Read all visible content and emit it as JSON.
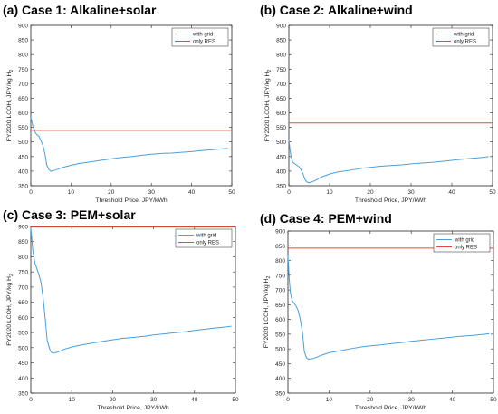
{
  "chart_data": [
    {
      "type": "line",
      "title": "(a) Case 1: Alkaline+solar",
      "xlabel": "Threshold Price, JPY/kWh",
      "ylabel": "FY2020 LCOH, JPY/kg H",
      "ylabel_sub": "2",
      "xlim": [
        0,
        50
      ],
      "ylim": [
        350,
        900
      ],
      "xticks": [
        0,
        10,
        20,
        30,
        40,
        50
      ],
      "yticks": [
        350,
        400,
        450,
        500,
        550,
        600,
        650,
        700,
        750,
        800,
        850,
        900
      ],
      "legend_position": "top-right",
      "series": [
        {
          "name": "with grid",
          "color": "#4a9fdc",
          "x": [
            0,
            0.5,
            1,
            1.5,
            2,
            2.5,
            3,
            3.5,
            4,
            4.5,
            5,
            6,
            7,
            8,
            10,
            12,
            15,
            18,
            20,
            22,
            25,
            28,
            30,
            33,
            35,
            38,
            40,
            42,
            45,
            48,
            49
          ],
          "y": [
            585,
            555,
            535,
            525,
            520,
            505,
            490,
            460,
            420,
            405,
            400,
            403,
            408,
            413,
            420,
            426,
            432,
            438,
            442,
            446,
            450,
            455,
            458,
            461,
            462,
            465,
            467,
            470,
            473,
            477,
            478
          ]
        },
        {
          "name": "only RES",
          "color": "#e8463c",
          "x": [
            0,
            50
          ],
          "y": [
            540,
            540
          ]
        }
      ]
    },
    {
      "type": "line",
      "title": "(b) Case 2: Alkaline+wind",
      "xlabel": "Threshold Price, JPY/kWh",
      "ylabel": "FY2020 LCOH, JPY/kg H",
      "ylabel_sub": "2",
      "xlim": [
        0,
        50
      ],
      "ylim": [
        350,
        900
      ],
      "xticks": [
        0,
        10,
        20,
        30,
        40,
        50
      ],
      "yticks": [
        350,
        400,
        450,
        500,
        550,
        600,
        650,
        700,
        750,
        800,
        850,
        900
      ],
      "legend_position": "top-right",
      "series": [
        {
          "name": "with grid",
          "color": "#4a9fdc",
          "x": [
            0,
            0.3,
            0.6,
            1,
            1.5,
            2,
            2.5,
            3,
            3.5,
            4,
            4.5,
            5,
            6,
            7,
            8,
            10,
            12,
            15,
            18,
            20,
            22,
            25,
            28,
            30,
            33,
            35,
            38,
            40,
            42,
            45,
            48,
            49
          ],
          "y": [
            510,
            470,
            445,
            430,
            425,
            420,
            415,
            405,
            390,
            370,
            362,
            360,
            365,
            372,
            380,
            390,
            397,
            403,
            410,
            413,
            416,
            419,
            422,
            425,
            428,
            430,
            434,
            437,
            440,
            444,
            448,
            450
          ]
        },
        {
          "name": "only RES",
          "color": "#e8463c",
          "x": [
            0,
            50
          ],
          "y": [
            565,
            565
          ]
        }
      ]
    },
    {
      "type": "line",
      "title": "(c) Case 3: PEM+solar",
      "xlabel": "Threshold Price, JPY/kWh",
      "ylabel": "FY2020 LCOH, JPY/kg H",
      "ylabel_sub": "2",
      "xlim": [
        0,
        50
      ],
      "ylim": [
        350,
        900
      ],
      "xticks": [
        0,
        10,
        20,
        30,
        40,
        50
      ],
      "yticks": [
        350,
        400,
        450,
        500,
        550,
        600,
        650,
        700,
        750,
        800,
        850,
        900
      ],
      "legend_position": "top-right",
      "series": [
        {
          "name": "with grid",
          "color": "#4a9fdc",
          "x": [
            0,
            0.5,
            1,
            1.5,
            2,
            2.5,
            3,
            3.5,
            4,
            4.5,
            5,
            5.5,
            6,
            7,
            8,
            10,
            12,
            15,
            18,
            20,
            22,
            25,
            28,
            30,
            33,
            35,
            38,
            40,
            42,
            45,
            48,
            49
          ],
          "y": [
            895,
            820,
            780,
            760,
            740,
            715,
            665,
            600,
            525,
            500,
            485,
            482,
            483,
            488,
            494,
            502,
            508,
            515,
            522,
            526,
            530,
            534,
            538,
            542,
            546,
            549,
            553,
            557,
            560,
            565,
            569,
            571
          ]
        },
        {
          "name": "only RES",
          "color": "#e8463c",
          "x": [
            0,
            50
          ],
          "y": [
            898,
            898
          ]
        }
      ]
    },
    {
      "type": "line",
      "title": "(d) Case 4: PEM+wind",
      "xlabel": "Threshold Price, JPY/kWh",
      "ylabel": "FY2020 LCOH, JPY/kg H",
      "ylabel_sub": "2",
      "xlim": [
        0,
        50
      ],
      "ylim": [
        350,
        900
      ],
      "xticks": [
        0,
        10,
        20,
        30,
        40,
        50
      ],
      "yticks": [
        350,
        400,
        450,
        500,
        550,
        600,
        650,
        700,
        750,
        800,
        850,
        900
      ],
      "legend_position": "top-right",
      "series": [
        {
          "name": "with grid",
          "color": "#4a9fdc",
          "x": [
            0,
            0.3,
            0.6,
            1,
            1.5,
            2,
            2.5,
            3,
            3.5,
            4,
            4.5,
            5,
            6,
            7,
            8,
            10,
            12,
            15,
            18,
            20,
            22,
            25,
            28,
            30,
            33,
            35,
            38,
            40,
            42,
            45,
            48,
            49
          ],
          "y": [
            820,
            740,
            690,
            665,
            655,
            645,
            630,
            600,
            560,
            490,
            470,
            465,
            467,
            472,
            478,
            487,
            492,
            500,
            507,
            510,
            513,
            518,
            522,
            526,
            530,
            533,
            537,
            540,
            543,
            546,
            550,
            552
          ]
        },
        {
          "name": "only RES",
          "color": "#e8463c",
          "x": [
            0,
            50
          ],
          "y": [
            842,
            842
          ]
        }
      ]
    }
  ]
}
